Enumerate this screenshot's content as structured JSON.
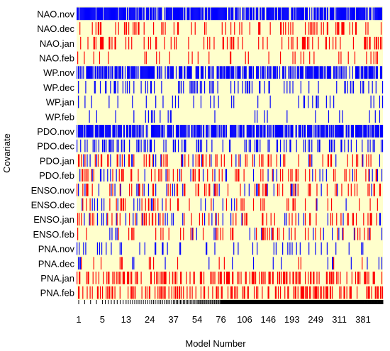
{
  "chart_data": {
    "type": "heatmap",
    "title": "",
    "xlabel": "Model Number",
    "ylabel": "Covariate",
    "rows": [
      "NAO.nov",
      "NAO.dec",
      "NAO.jan",
      "NAO.feb",
      "WP.nov",
      "WP.dec",
      "WP.jan",
      "WP.feb",
      "PDO.nov",
      "PDO.dec",
      "PDO.jan",
      "PDO.feb",
      "ENSO.nov",
      "ENSO.dec",
      "ENSO.jan",
      "ENSO.feb",
      "PNA.nov",
      "PNA.dec",
      "PNA.jan",
      "PNA.feb"
    ],
    "x_tick_labels": [
      "1",
      "5",
      "13",
      "24",
      "37",
      "54",
      "76",
      "106",
      "146",
      "193",
      "249",
      "311",
      "381"
    ],
    "x_range": [
      1,
      420
    ],
    "colors": {
      "background": "#ffffcc",
      "positive": "#0000ff",
      "negative": "#ff0000",
      "axis": "#000000"
    },
    "legend": "none",
    "grid": false,
    "row_inclusion": [
      {
        "row": "NAO.nov",
        "positive": 0.78,
        "negative": 0.0
      },
      {
        "row": "NAO.dec",
        "positive": 0.0,
        "negative": 0.17
      },
      {
        "row": "NAO.jan",
        "positive": 0.0,
        "negative": 0.16
      },
      {
        "row": "NAO.feb",
        "positive": 0.0,
        "negative": 0.08
      },
      {
        "row": "WP.nov",
        "positive": 0.62,
        "negative": 0.0
      },
      {
        "row": "WP.dec",
        "positive": 0.18,
        "negative": 0.0
      },
      {
        "row": "WP.jan",
        "positive": 0.08,
        "negative": 0.0
      },
      {
        "row": "WP.feb",
        "positive": 0.06,
        "negative": 0.0
      },
      {
        "row": "PDO.nov",
        "positive": 0.7,
        "negative": 0.0
      },
      {
        "row": "PDO.dec",
        "positive": 0.2,
        "negative": 0.0
      },
      {
        "row": "PDO.jan",
        "positive": 0.05,
        "negative": 0.17
      },
      {
        "row": "PDO.feb",
        "positive": 0.05,
        "negative": 0.17
      },
      {
        "row": "ENSO.nov",
        "positive": 0.05,
        "negative": 0.16
      },
      {
        "row": "ENSO.dec",
        "positive": 0.05,
        "negative": 0.13
      },
      {
        "row": "ENSO.jan",
        "positive": 0.05,
        "negative": 0.12
      },
      {
        "row": "ENSO.feb",
        "positive": 0.05,
        "negative": 0.11
      },
      {
        "row": "PNA.nov",
        "positive": 0.1,
        "negative": 0.0
      },
      {
        "row": "PNA.dec",
        "positive": 0.05,
        "negative": 0.05
      },
      {
        "row": "PNA.jan",
        "positive": 0.0,
        "negative": 0.34
      },
      {
        "row": "PNA.feb",
        "positive": 0.0,
        "negative": 0.33
      }
    ]
  }
}
